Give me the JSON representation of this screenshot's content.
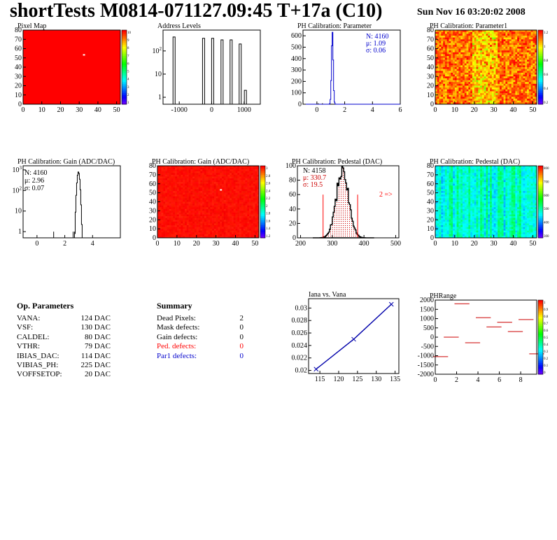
{
  "header": {
    "title": "shortTests M0814-071127.09:45 T+17a (C10)",
    "date": "Sun Nov 16 03:20:02 2008"
  },
  "op_params": {
    "title": "Op. Parameters",
    "rows": [
      {
        "name": "VANA:",
        "value": "124 DAC"
      },
      {
        "name": "VSF:",
        "value": "130 DAC"
      },
      {
        "name": "CALDEL:",
        "value": "80 DAC"
      },
      {
        "name": "VTHR:",
        "value": "79 DAC"
      },
      {
        "name": "IBIAS_DAC:",
        "value": "114 DAC"
      },
      {
        "name": "VIBIAS_PH:",
        "value": "225 DAC"
      },
      {
        "name": "VOFFSETOP:",
        "value": "20 DAC"
      }
    ]
  },
  "summary": {
    "title": "Summary",
    "rows": [
      {
        "name": "Dead Pixels:",
        "value": "2",
        "color": "#000000"
      },
      {
        "name": "Mask defects:",
        "value": "0",
        "color": "#000000"
      },
      {
        "name": "Gain defects:",
        "value": "0",
        "color": "#000000"
      },
      {
        "name": "Ped. defects:",
        "value": "0",
        "color": "#ff0000"
      },
      {
        "name": "Par1 defects:",
        "value": "0",
        "color": "#0000cc"
      }
    ]
  },
  "chart_data": [
    {
      "id": "pixel-map",
      "type": "heatmap",
      "title": "Pixel Map",
      "xlim": [
        0,
        52
      ],
      "ylim": [
        0,
        80
      ],
      "xticks": [
        "0",
        "10",
        "20",
        "30",
        "40",
        "50"
      ],
      "yticks": [
        "0",
        "10",
        "20",
        "30",
        "40",
        "50",
        "60",
        "70",
        "80"
      ],
      "fill_color": "#ff0000",
      "spot": {
        "x": 32,
        "y": 54,
        "color": "#ffffff"
      },
      "palette_labels": [
        "10",
        "9",
        "8",
        "7",
        "6",
        "5",
        "4",
        "3",
        "2",
        "1"
      ]
    },
    {
      "id": "address-levels",
      "type": "bar",
      "title": "Address Levels",
      "xlim": [
        -1500,
        1500
      ],
      "yscale": "log",
      "xticks": [
        "-1000",
        "0",
        "1000"
      ],
      "yticks": [
        "1",
        "10",
        "10^2"
      ],
      "peaks": [
        {
          "x": -1160,
          "count": 400
        },
        {
          "x": -250,
          "count": 350
        },
        {
          "x": 30,
          "count": 350
        },
        {
          "x": 320,
          "count": 300
        },
        {
          "x": 600,
          "count": 300
        },
        {
          "x": 880,
          "count": 200
        },
        {
          "x": 1040,
          "count": 2
        }
      ]
    },
    {
      "id": "ph-calibration-parameter",
      "type": "line",
      "title": "PH Calibration: Parameter",
      "xlim": [
        -1,
        6
      ],
      "ylim": [
        0,
        650
      ],
      "xticks": [
        "0",
        "2",
        "4",
        "6"
      ],
      "yticks": [
        "0",
        "100",
        "200",
        "300",
        "400",
        "500",
        "600"
      ],
      "stats": [
        "N: 4160",
        "μ: 1.09",
        "σ: 0.06"
      ],
      "stats_color": "#0000cc",
      "peak": {
        "mean": 1.09,
        "sigma": 0.06,
        "max": 640
      }
    },
    {
      "id": "ph-calibration-parameter1",
      "type": "heatmap",
      "title": "PH Calibration: Parameter1",
      "xlim": [
        0,
        52
      ],
      "ylim": [
        0,
        80
      ],
      "xticks": [
        "0",
        "10",
        "20",
        "30",
        "40",
        "50"
      ],
      "yticks": [
        "0",
        "10",
        "20",
        "30",
        "40",
        "50",
        "60",
        "70",
        "80"
      ],
      "palette_labels": [
        "1.2",
        "1",
        "0.8",
        "0.6",
        "0.4",
        "0.2"
      ]
    },
    {
      "id": "ph-calibration-gain",
      "type": "line",
      "title": "PH Calibration: Gain (ADC/DAC)",
      "xlim": [
        -1,
        6
      ],
      "yscale": "log",
      "xticks": [
        "0",
        "2",
        "4"
      ],
      "yticks": [
        "1",
        "10",
        "10^2",
        "10^3"
      ],
      "stats": [
        "N: 4160",
        "μ: 2.96",
        "σ: 0.07"
      ],
      "stats_color": "#000000",
      "peak": {
        "mean": 2.96,
        "sigma": 0.07,
        "max": 800
      }
    },
    {
      "id": "ph-calibration-gain-map",
      "type": "heatmap",
      "title": "PH Calibration: Gain (ADC/DAC)",
      "xlim": [
        0,
        52
      ],
      "ylim": [
        0,
        80
      ],
      "xticks": [
        "0",
        "10",
        "20",
        "30",
        "40",
        "50"
      ],
      "yticks": [
        "0",
        "10",
        "20",
        "30",
        "40",
        "50",
        "60",
        "70",
        "80"
      ],
      "spot": {
        "x": 32,
        "y": 54,
        "color": "#ffffff"
      },
      "palette_labels": [
        "3",
        "2.8",
        "2.6",
        "2.4",
        "2.2",
        "2",
        "1.8",
        "1.6",
        "1.4",
        "1.2"
      ]
    },
    {
      "id": "ph-calibration-pedestal",
      "type": "bar",
      "title": "PH Calibration: Pedestal (DAC)",
      "xlim": [
        190,
        510
      ],
      "ylim": [
        0,
        100
      ],
      "xticks": [
        "200",
        "300",
        "400",
        "500"
      ],
      "yticks": [
        "0",
        "20",
        "40",
        "60",
        "80",
        "100"
      ],
      "stats": [
        "N: 4158",
        "μ: 330.7",
        "σ: 19.5"
      ],
      "stats_colors": [
        "#000000",
        "#cc0000",
        "#cc0000"
      ],
      "annotation": "2 =>",
      "peak": {
        "mean": 330.7,
        "sigma": 19.5,
        "max": 95
      },
      "cut_lines": [
        271,
        380
      ]
    },
    {
      "id": "ph-calibration-pedestal-map",
      "type": "heatmap",
      "title": "PH Calibration: Pedestal (DAC)",
      "xlim": [
        0,
        52
      ],
      "ylim": [
        0,
        80
      ],
      "xticks": [
        "0",
        "10",
        "20",
        "30",
        "40",
        "50"
      ],
      "yticks": [
        "0",
        "10",
        "20",
        "30",
        "40",
        "50",
        "60",
        "70",
        "80"
      ],
      "palette_labels": [
        "800",
        "700",
        "600",
        "500",
        "400",
        "300"
      ]
    },
    {
      "id": "iana-vs-vana",
      "type": "line",
      "title": "Iana vs. Vana",
      "xlim": [
        112,
        136
      ],
      "ylim": [
        0.0195,
        0.0315
      ],
      "xticks": [
        "115",
        "120",
        "125",
        "130",
        "135"
      ],
      "yticks": [
        "0.02",
        "0.022",
        "0.024",
        "0.026",
        "0.028",
        "0.03"
      ],
      "series": [
        {
          "x": [
            114,
            124,
            134
          ],
          "y": [
            0.0202,
            0.025,
            0.0306
          ]
        }
      ]
    },
    {
      "id": "phrange",
      "type": "scatter",
      "title": "PHRange",
      "xlim": [
        0,
        9.5
      ],
      "ylim": [
        -2000,
        2000
      ],
      "xticks": [
        "0",
        "2",
        "4",
        "6",
        "8"
      ],
      "yticks": [
        "2000",
        "1500",
        "1000",
        "500",
        "0",
        "-500",
        "-1000",
        "-1500",
        "-2000"
      ],
      "segments": [
        {
          "x": 0.5,
          "y": -1050
        },
        {
          "x": 1.5,
          "y": 0
        },
        {
          "x": 2.5,
          "y": 1800
        },
        {
          "x": 3.5,
          "y": -300
        },
        {
          "x": 4.5,
          "y": 1050
        },
        {
          "x": 5.5,
          "y": 550
        },
        {
          "x": 6.5,
          "y": 800
        },
        {
          "x": 7.5,
          "y": 300
        },
        {
          "x": 8.5,
          "y": 950
        },
        {
          "x": 9.5,
          "y": -900
        }
      ],
      "palette_labels": [
        "1",
        "0.9",
        "0.8",
        "0.7",
        "0.6",
        "0.5",
        "0.4",
        "0.3",
        "0.2",
        "0.1",
        "0"
      ]
    }
  ]
}
